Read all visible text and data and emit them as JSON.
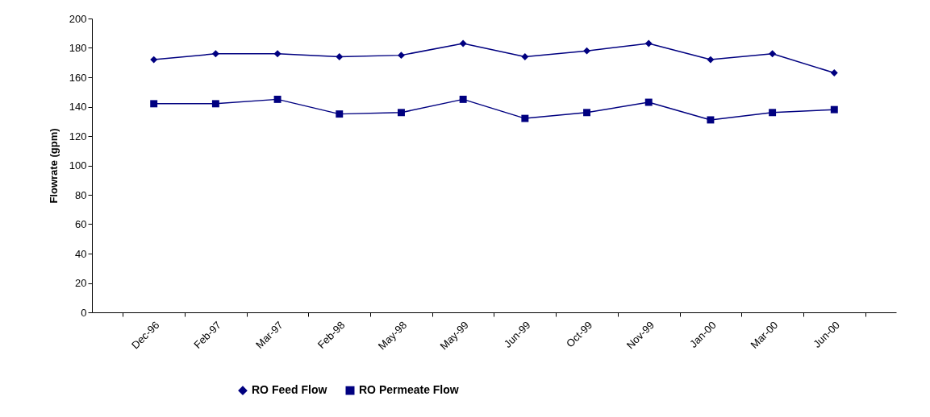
{
  "chart_data": {
    "type": "line",
    "ylabel": "Flowrate (gpm)",
    "categories": [
      "Dec-96",
      "Feb-97",
      "Mar-97",
      "Feb-98",
      "May-98",
      "May-99",
      "Jun-99",
      "Oct-99",
      "Nov-99",
      "Jan-00",
      "Mar-00",
      "Jun-00"
    ],
    "series": [
      {
        "name": "RO Feed Flow",
        "color": "#000080",
        "marker": "diamond",
        "values": [
          172,
          176,
          176,
          174,
          175,
          183,
          174,
          178,
          183,
          172,
          176,
          163
        ]
      },
      {
        "name": "RO Permeate Flow",
        "color": "#000080",
        "marker": "square",
        "values": [
          142,
          142,
          145,
          135,
          136,
          145,
          132,
          136,
          143,
          131,
          136,
          138
        ]
      }
    ],
    "ylim": [
      0,
      200
    ],
    "yticks": [
      0,
      20,
      40,
      60,
      80,
      100,
      120,
      140,
      160,
      180,
      200
    ],
    "grid": false,
    "legend": "bottom",
    "line_style": "solid"
  }
}
